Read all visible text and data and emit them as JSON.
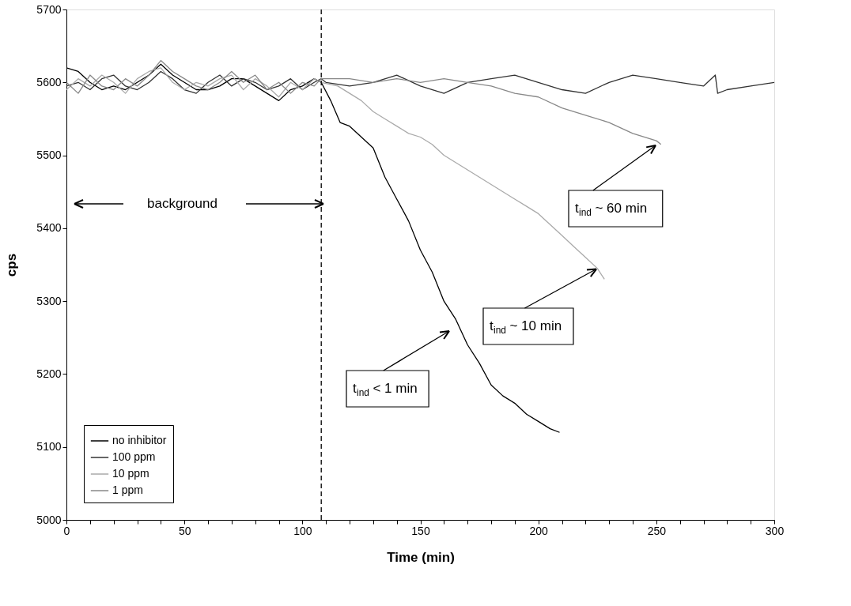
{
  "chart_data": {
    "type": "line",
    "xlabel": "Time (min)",
    "ylabel": "cps",
    "xlim": [
      0,
      300
    ],
    "ylim": [
      5000,
      5700
    ],
    "xticks": [
      0,
      {
        "value": 10,
        "label": null
      },
      {
        "value": 20,
        "label": null
      },
      {
        "value": 30,
        "label": null
      },
      {
        "value": 40,
        "label": null
      },
      50,
      {
        "value": 60,
        "label": null
      },
      {
        "value": 70,
        "label": null
      },
      {
        "value": 80,
        "label": null
      },
      {
        "value": 90,
        "label": null
      },
      100,
      {
        "value": 110,
        "label": null
      },
      {
        "value": 120,
        "label": null
      },
      {
        "value": 130,
        "label": null
      },
      {
        "value": 140,
        "label": null
      },
      150,
      {
        "value": 160,
        "label": null
      },
      {
        "value": 170,
        "label": null
      },
      {
        "value": 180,
        "label": null
      },
      {
        "value": 190,
        "label": null
      },
      200,
      {
        "value": 210,
        "label": null
      },
      {
        "value": 220,
        "label": null
      },
      {
        "value": 230,
        "label": null
      },
      {
        "value": 240,
        "label": null
      },
      250,
      {
        "value": 260,
        "label": null
      },
      {
        "value": 270,
        "label": null
      },
      {
        "value": 280,
        "label": null
      },
      {
        "value": 290,
        "label": null
      },
      300
    ],
    "yticks": [
      5000,
      5100,
      5200,
      5300,
      5400,
      5500,
      5600,
      5700
    ],
    "grid": false,
    "legend": "bottom left",
    "line_style": "solid",
    "series": [
      {
        "name": "no inhibitor",
        "color": "#000000",
        "x": [
          0,
          5,
          10,
          15,
          20,
          25,
          30,
          35,
          40,
          45,
          50,
          55,
          60,
          65,
          70,
          75,
          80,
          85,
          90,
          95,
          100,
          105,
          108,
          112,
          116,
          120,
          125,
          130,
          135,
          140,
          145,
          150,
          155,
          160,
          165,
          170,
          175,
          180,
          185,
          190,
          195,
          200,
          205,
          209
        ],
        "values": [
          5620,
          5615,
          5600,
          5590,
          5595,
          5590,
          5600,
          5610,
          5625,
          5610,
          5600,
          5590,
          5590,
          5595,
          5605,
          5605,
          5595,
          5585,
          5575,
          5590,
          5595,
          5605,
          5600,
          5575,
          5545,
          5540,
          5525,
          5510,
          5470,
          5440,
          5410,
          5370,
          5340,
          5300,
          5275,
          5240,
          5215,
          5185,
          5170,
          5160,
          5145,
          5135,
          5125,
          5120
        ]
      },
      {
        "name": "100 ppm",
        "color": "#333333",
        "x": [
          0,
          5,
          10,
          15,
          20,
          25,
          30,
          35,
          40,
          45,
          50,
          55,
          60,
          65,
          70,
          75,
          80,
          85,
          90,
          95,
          100,
          105,
          108,
          110,
          120,
          130,
          140,
          150,
          160,
          170,
          180,
          190,
          200,
          210,
          220,
          230,
          240,
          250,
          260,
          270,
          275,
          276,
          280,
          290,
          300
        ],
        "values": [
          5595,
          5600,
          5590,
          5605,
          5610,
          5595,
          5590,
          5600,
          5615,
          5605,
          5590,
          5585,
          5600,
          5610,
          5595,
          5605,
          5600,
          5590,
          5595,
          5605,
          5590,
          5600,
          5605,
          5600,
          5595,
          5600,
          5610,
          5595,
          5585,
          5600,
          5605,
          5610,
          5600,
          5590,
          5585,
          5600,
          5610,
          5605,
          5600,
          5595,
          5610,
          5585,
          5590,
          5595,
          5600
        ]
      },
      {
        "name": "10 ppm",
        "color": "#aaaaaa",
        "x": [
          0,
          5,
          10,
          15,
          20,
          25,
          30,
          35,
          40,
          45,
          50,
          55,
          60,
          65,
          70,
          75,
          80,
          85,
          90,
          95,
          100,
          105,
          108,
          115,
          120,
          125,
          130,
          135,
          140,
          145,
          150,
          155,
          160,
          165,
          170,
          175,
          180,
          185,
          190,
          195,
          200,
          205,
          210,
          215,
          220,
          225,
          228
        ],
        "values": [
          5590,
          5605,
          5595,
          5610,
          5600,
          5585,
          5605,
          5615,
          5620,
          5600,
          5590,
          5600,
          5595,
          5605,
          5610,
          5590,
          5605,
          5595,
          5580,
          5600,
          5590,
          5605,
          5600,
          5595,
          5585,
          5575,
          5560,
          5550,
          5540,
          5530,
          5525,
          5515,
          5500,
          5490,
          5480,
          5470,
          5460,
          5450,
          5440,
          5430,
          5420,
          5405,
          5390,
          5375,
          5360,
          5345,
          5330
        ]
      },
      {
        "name": "1 ppm",
        "color": "#888888",
        "x": [
          0,
          5,
          10,
          15,
          20,
          25,
          30,
          35,
          40,
          45,
          50,
          55,
          60,
          65,
          70,
          75,
          80,
          85,
          90,
          95,
          100,
          105,
          108,
          120,
          130,
          140,
          150,
          160,
          170,
          180,
          190,
          200,
          210,
          220,
          230,
          240,
          250,
          252
        ],
        "values": [
          5600,
          5585,
          5610,
          5595,
          5590,
          5605,
          5595,
          5610,
          5630,
          5615,
          5605,
          5595,
          5590,
          5600,
          5615,
          5600,
          5610,
          5590,
          5600,
          5585,
          5600,
          5595,
          5605,
          5605,
          5600,
          5605,
          5600,
          5605,
          5600,
          5595,
          5585,
          5580,
          5565,
          5555,
          5545,
          5530,
          5520,
          5515
        ]
      }
    ],
    "ref_lines": [
      {
        "axis": "x",
        "value": 108,
        "color": "#000000",
        "line_style": "dashed"
      }
    ],
    "annotations": [
      "background",
      "t$_{ind}$ < 1 min",
      {
        "text": "t$_{ind}$ ~ 10 min",
        "x": 224.6,
        "y": 5344
      },
      "t$_{ind}$ ~ 60 min"
    ]
  }
}
